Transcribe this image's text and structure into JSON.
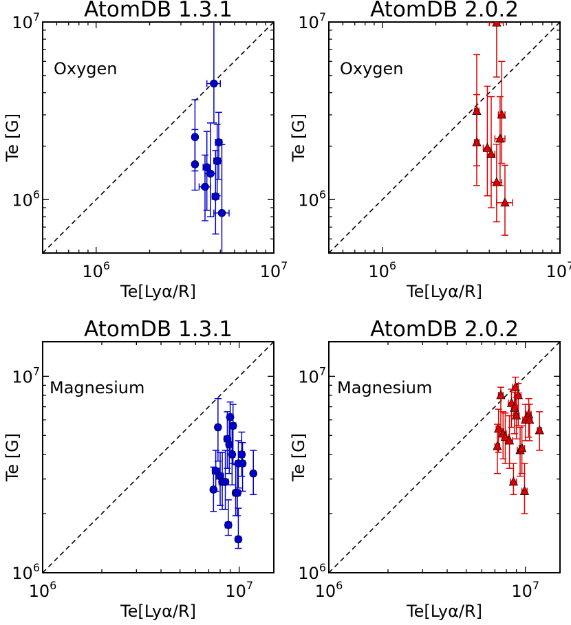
{
  "chart_data": [
    {
      "type": "scatter",
      "title": "AtomDB 1.3.1",
      "element": "Oxygen",
      "xlabel": "Te[Lyα/R]",
      "ylabel": "Te [G]",
      "xscale": "log",
      "yscale": "log",
      "xlim": [
        500000,
        10000000
      ],
      "ylim": [
        500000,
        10000000
      ],
      "diagonal": "y = x (dashed)",
      "grid": false,
      "marker": "circle",
      "color": "#0000cc",
      "points": [
        {
          "x": 4600000,
          "y": 4500000,
          "yerr": [
            1800000,
            9000000
          ],
          "xerr": [
            400000,
            400000
          ]
        },
        {
          "x": 3600000,
          "y": 2250000,
          "yerr": [
            800000,
            1400000
          ],
          "xerr": [
            100000,
            100000
          ]
        },
        {
          "x": 4900000,
          "y": 2100000,
          "yerr": [
            800000,
            1000000
          ],
          "xerr": [
            200000,
            200000
          ]
        },
        {
          "x": 3600000,
          "y": 1580000,
          "yerr": [
            450000,
            900000
          ],
          "xerr": [
            100000,
            100000
          ]
        },
        {
          "x": 4800000,
          "y": 1650000,
          "yerr": [
            600000,
            1000000
          ],
          "xerr": [
            200000,
            200000
          ]
        },
        {
          "x": 4200000,
          "y": 1520000,
          "yerr": [
            650000,
            900000
          ],
          "xerr": [
            200000,
            200000
          ]
        },
        {
          "x": 4400000,
          "y": 1400000,
          "yerr": [
            600000,
            1300000
          ],
          "xerr": [
            300000,
            300000
          ]
        },
        {
          "x": 4100000,
          "y": 1180000,
          "yerr": [
            420000,
            600000
          ],
          "xerr": [
            300000,
            300000
          ]
        },
        {
          "x": 4700000,
          "y": 1040000,
          "yerr": [
            400000,
            850000
          ],
          "xerr": [
            200000,
            200000
          ]
        },
        {
          "x": 5100000,
          "y": 840000,
          "yerr": [
            400000,
            1200000
          ],
          "xerr": [
            500000,
            500000
          ]
        }
      ]
    },
    {
      "type": "scatter",
      "title": "AtomDB 2.0.2",
      "element": "Oxygen",
      "xlabel": "Te[Lyα/R]",
      "ylabel": "Te [G]",
      "xscale": "log",
      "yscale": "log",
      "xlim": [
        500000,
        10000000
      ],
      "ylim": [
        500000,
        10000000
      ],
      "diagonal": "y = x (dashed)",
      "grid": false,
      "marker": "triangle",
      "color": "#dd0000",
      "points": [
        {
          "x": 4400000,
          "y": 9900000,
          "yerr": [
            5000000,
            2000000
          ],
          "xerr": [
            400000,
            400000
          ]
        },
        {
          "x": 3400000,
          "y": 3150000,
          "yerr": [
            1600000,
            3400000
          ],
          "xerr": [
            100000,
            100000
          ]
        },
        {
          "x": 4700000,
          "y": 3000000,
          "yerr": [
            1400000,
            3000000
          ],
          "xerr": [
            200000,
            200000
          ]
        },
        {
          "x": 3400000,
          "y": 2100000,
          "yerr": [
            900000,
            1800000
          ],
          "xerr": [
            100000,
            100000
          ]
        },
        {
          "x": 3900000,
          "y": 1950000,
          "yerr": [
            900000,
            2400000
          ],
          "xerr": [
            200000,
            200000
          ]
        },
        {
          "x": 4100000,
          "y": 1800000,
          "yerr": [
            900000,
            2000000
          ],
          "xerr": [
            200000,
            200000
          ]
        },
        {
          "x": 4600000,
          "y": 2200000,
          "yerr": [
            1000000,
            1600000
          ],
          "xerr": [
            300000,
            300000
          ]
        },
        {
          "x": 4400000,
          "y": 1250000,
          "yerr": [
            500000,
            800000
          ],
          "xerr": [
            300000,
            300000
          ]
        },
        {
          "x": 4900000,
          "y": 960000,
          "yerr": [
            330000,
            600000
          ],
          "xerr": [
            500000,
            500000
          ]
        }
      ]
    },
    {
      "type": "scatter",
      "title": "AtomDB 1.3.1",
      "element": "Magnesium",
      "xlabel": "Te[Lyα/R]",
      "ylabel": "Te [G]",
      "xscale": "log",
      "yscale": "log",
      "xlim": [
        1000000,
        15000000
      ],
      "ylim": [
        1000000,
        15000000
      ],
      "diagonal": "y = x (dashed)",
      "grid": false,
      "marker": "circle",
      "color": "#0000cc",
      "points": [
        {
          "x": 7800000,
          "y": 5500000,
          "yerr": [
            1800000,
            2200000
          ],
          "xerr": [
            200000,
            200000
          ]
        },
        {
          "x": 9000000,
          "y": 6200000,
          "yerr": [
            2000000,
            1200000
          ],
          "xerr": [
            300000,
            300000
          ]
        },
        {
          "x": 9300000,
          "y": 5600000,
          "yerr": [
            2000000,
            1600000
          ],
          "xerr": [
            300000,
            300000
          ]
        },
        {
          "x": 8700000,
          "y": 4800000,
          "yerr": [
            1400000,
            1800000
          ],
          "xerr": [
            300000,
            300000
          ]
        },
        {
          "x": 8900000,
          "y": 4500000,
          "yerr": [
            1300000,
            1700000
          ],
          "xerr": [
            300000,
            300000
          ]
        },
        {
          "x": 10300000,
          "y": 4000000,
          "yerr": [
            900000,
            1200000
          ],
          "xerr": [
            300000,
            300000
          ]
        },
        {
          "x": 9200000,
          "y": 4000000,
          "yerr": [
            1200000,
            1600000
          ],
          "xerr": [
            300000,
            300000
          ]
        },
        {
          "x": 9900000,
          "y": 3600000,
          "yerr": [
            900000,
            1100000
          ],
          "xerr": [
            300000,
            300000
          ]
        },
        {
          "x": 10400000,
          "y": 3600000,
          "yerr": [
            1000000,
            1000000
          ],
          "xerr": [
            300000,
            300000
          ]
        },
        {
          "x": 7600000,
          "y": 3300000,
          "yerr": [
            700000,
            900000
          ],
          "xerr": [
            300000,
            300000
          ]
        },
        {
          "x": 11800000,
          "y": 3200000,
          "yerr": [
            700000,
            1000000
          ],
          "xerr": [
            300000,
            300000
          ]
        },
        {
          "x": 8000000,
          "y": 3100000,
          "yerr": [
            900000,
            1000000
          ],
          "xerr": [
            300000,
            300000
          ]
        },
        {
          "x": 8200000,
          "y": 2900000,
          "yerr": [
            800000,
            1200000
          ],
          "xerr": [
            300000,
            300000
          ]
        },
        {
          "x": 8500000,
          "y": 2900000,
          "yerr": [
            800000,
            1300000
          ],
          "xerr": [
            300000,
            300000
          ]
        },
        {
          "x": 7400000,
          "y": 2650000,
          "yerr": [
            600000,
            800000
          ],
          "xerr": [
            200000,
            200000
          ]
        },
        {
          "x": 9600000,
          "y": 2550000,
          "yerr": [
            600000,
            1000000
          ],
          "xerr": [
            300000,
            300000
          ]
        },
        {
          "x": 9800000,
          "y": 2550000,
          "yerr": [
            600000,
            1000000
          ],
          "xerr": [
            300000,
            300000
          ]
        },
        {
          "x": 8800000,
          "y": 1750000,
          "yerr": [
            200000,
            600000
          ],
          "xerr": [
            300000,
            300000
          ]
        },
        {
          "x": 9900000,
          "y": 1480000,
          "yerr": [
            150000,
            650000
          ],
          "xerr": [
            300000,
            300000
          ]
        }
      ]
    },
    {
      "type": "scatter",
      "title": "AtomDB 2.0.2",
      "element": "Magnesium",
      "xlabel": "Te[Lyα/R]",
      "ylabel": "Te [G]",
      "xscale": "log",
      "yscale": "log",
      "xlim": [
        1000000,
        15000000
      ],
      "ylim": [
        1000000,
        15000000
      ],
      "diagonal": "y = x (dashed)",
      "grid": false,
      "marker": "triangle",
      "color": "#dd0000",
      "points": [
        {
          "x": 8900000,
          "y": 8800000,
          "yerr": [
            2000000,
            1100000
          ],
          "xerr": [
            300000,
            300000
          ]
        },
        {
          "x": 7500000,
          "y": 8000000,
          "yerr": [
            2600000,
            800000
          ],
          "xerr": [
            200000,
            200000
          ]
        },
        {
          "x": 9200000,
          "y": 8000000,
          "yerr": [
            2400000,
            1200000
          ],
          "xerr": [
            300000,
            300000
          ]
        },
        {
          "x": 8500000,
          "y": 7300000,
          "yerr": [
            1800000,
            1300000
          ],
          "xerr": [
            300000,
            300000
          ]
        },
        {
          "x": 8800000,
          "y": 6900000,
          "yerr": [
            1800000,
            1400000
          ],
          "xerr": [
            300000,
            300000
          ]
        },
        {
          "x": 9000000,
          "y": 6300000,
          "yerr": [
            1500000,
            1500000
          ],
          "xerr": [
            300000,
            300000
          ]
        },
        {
          "x": 10400000,
          "y": 6400000,
          "yerr": [
            1500000,
            1300000
          ],
          "xerr": [
            300000,
            300000
          ]
        },
        {
          "x": 10000000,
          "y": 6000000,
          "yerr": [
            1300000,
            1200000
          ],
          "xerr": [
            300000,
            300000
          ]
        },
        {
          "x": 10500000,
          "y": 6000000,
          "yerr": [
            1300000,
            1200000
          ],
          "xerr": [
            300000,
            300000
          ]
        },
        {
          "x": 7300000,
          "y": 5400000,
          "yerr": [
            1300000,
            1400000
          ],
          "xerr": [
            200000,
            200000
          ]
        },
        {
          "x": 11800000,
          "y": 5300000,
          "yerr": [
            1100000,
            1300000
          ],
          "xerr": [
            300000,
            300000
          ]
        },
        {
          "x": 7700000,
          "y": 5100000,
          "yerr": [
            1300000,
            1500000
          ],
          "xerr": [
            300000,
            300000
          ]
        },
        {
          "x": 7900000,
          "y": 4900000,
          "yerr": [
            1300000,
            1600000
          ],
          "xerr": [
            300000,
            300000
          ]
        },
        {
          "x": 8300000,
          "y": 4700000,
          "yerr": [
            1300000,
            1600000
          ],
          "xerr": [
            300000,
            300000
          ]
        },
        {
          "x": 7200000,
          "y": 4400000,
          "yerr": [
            1200000,
            1300000
          ],
          "xerr": [
            200000,
            200000
          ]
        },
        {
          "x": 9400000,
          "y": 4200000,
          "yerr": [
            1100000,
            1300000
          ],
          "xerr": [
            300000,
            300000
          ]
        },
        {
          "x": 9600000,
          "y": 4300000,
          "yerr": [
            1100000,
            1300000
          ],
          "xerr": [
            300000,
            300000
          ]
        },
        {
          "x": 8700000,
          "y": 2900000,
          "yerr": [
            400000,
            700000
          ],
          "xerr": [
            300000,
            300000
          ]
        },
        {
          "x": 9900000,
          "y": 2600000,
          "yerr": [
            600000,
            1000000
          ],
          "xerr": [
            300000,
            300000
          ]
        }
      ]
    }
  ]
}
